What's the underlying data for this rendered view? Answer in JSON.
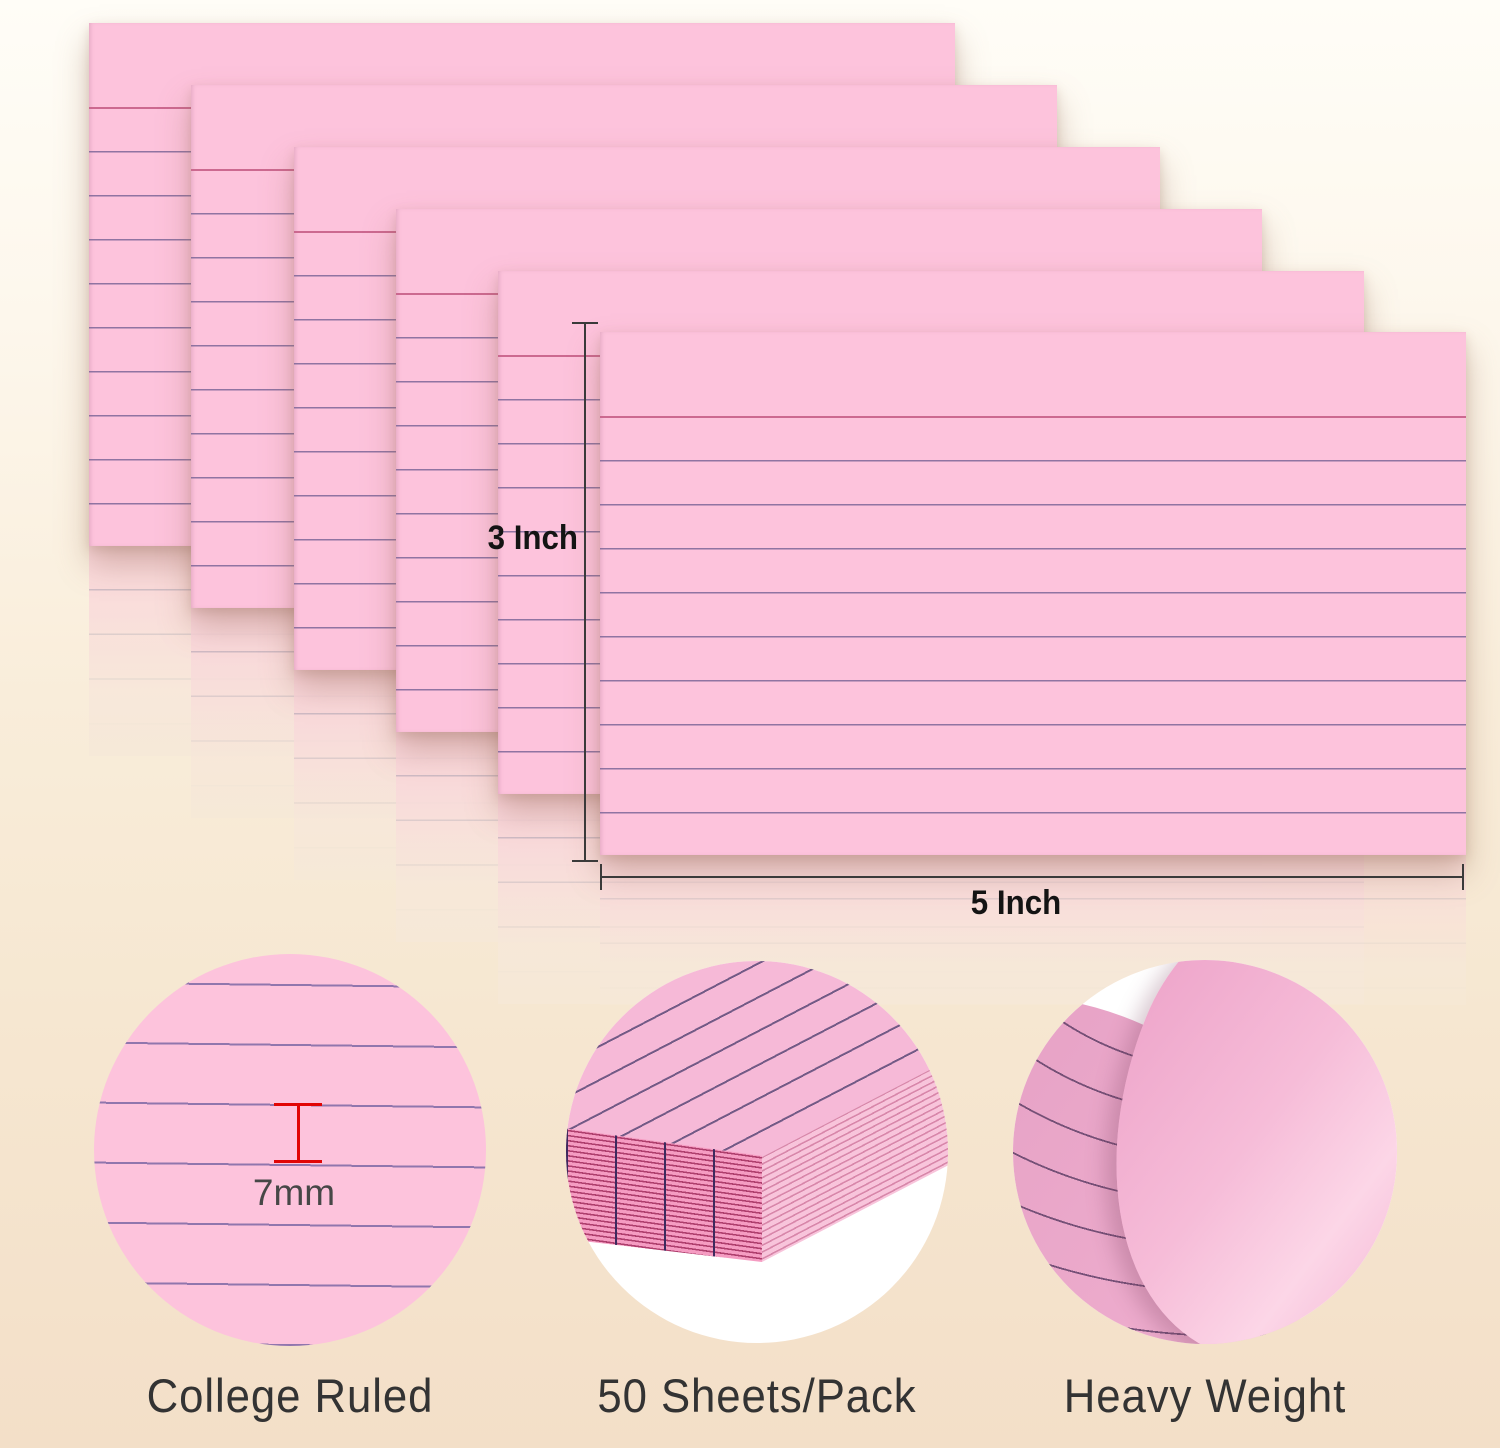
{
  "title": "Pink ruled index cards product infographic",
  "dimensions": {
    "height_label": "3 Inch",
    "width_label": "5 Inch"
  },
  "ruling": {
    "spacing_label": "7mm"
  },
  "features": [
    {
      "id": "ruling",
      "label": "College Ruled"
    },
    {
      "id": "count",
      "label": "50 Sheets/Pack"
    },
    {
      "id": "weight",
      "label": "Heavy Weight"
    }
  ],
  "card_count": 6,
  "colors": {
    "card_pink": "#fdc3dc",
    "rule_line": "rgba(116,96,148,0.8)",
    "header_line": "rgba(198,95,135,0.9)",
    "red_marker": "#e10505",
    "dimension_line": "#3a3a3a",
    "dim_text": "#141414",
    "label_text": "#333333",
    "bg_top": "#fffdf7",
    "bg_bottom": "#f3dfc8",
    "circle_bg": "#ffffff",
    "stack_line_dark": "#3d2a5e",
    "stripe_red": "rgba(150,30,80,0.75)"
  }
}
